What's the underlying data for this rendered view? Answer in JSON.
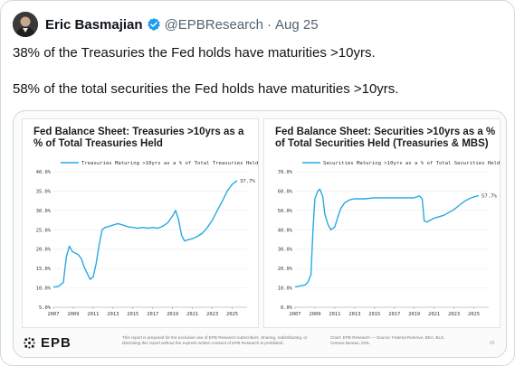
{
  "tweet": {
    "author_name": "Eric Basmajian",
    "handle": "@EPBResearch",
    "separator": "·",
    "date": "Aug 25",
    "paragraphs": [
      "38% of the Treasuries the Fed holds have maturities >10yrs.",
      "58% of the total securities the Fed holds have maturities >10yrs."
    ],
    "verified_color": "#1d9bf0"
  },
  "media": {
    "footer": {
      "logo_text": "EPB",
      "disclaimer": "This report is prepared for the exclusive use of EPB Research subscribers. Sharing, redistributing, or disclosing this report without the express written consent of EPB Research is prohibited.",
      "source": "Chart: EPB Research — Source: Federal Reserve, BEA, BLS, Census Bureau, DOL",
      "page": "#2"
    }
  },
  "chart_data": [
    {
      "type": "line",
      "title": "Fed Balance Sheet: Treasuries >10yrs as a % of Total Treasuries Held",
      "legend": "Treasuries Maturing >10yrs as a % of Total Treasuries Held",
      "last_value_label": "37.7%",
      "x_ticks": [
        "2007",
        "2009",
        "2011",
        "2013",
        "2015",
        "2017",
        "2019",
        "2021",
        "2023",
        "2025"
      ],
      "y_ticks": [
        "5.0%",
        "10.0%",
        "15.0%",
        "20.0%",
        "25.0%",
        "30.0%",
        "35.0%",
        "40.0%"
      ],
      "xlim": [
        2007,
        2026.5
      ],
      "ylim": [
        5,
        40
      ],
      "color": "#29a9e0",
      "x": [
        2007.0,
        2007.5,
        2008.0,
        2008.3,
        2008.6,
        2008.9,
        2009.2,
        2009.5,
        2009.8,
        2010.1,
        2010.4,
        2010.7,
        2011.0,
        2011.3,
        2011.6,
        2011.9,
        2012.2,
        2012.5,
        2013.0,
        2013.5,
        2014.0,
        2014.5,
        2015.0,
        2015.5,
        2016.0,
        2016.5,
        2017.0,
        2017.5,
        2018.0,
        2018.5,
        2019.0,
        2019.3,
        2019.6,
        2019.9,
        2020.2,
        2020.5,
        2021.0,
        2021.5,
        2022.0,
        2022.5,
        2023.0,
        2023.5,
        2024.0,
        2024.5,
        2025.0,
        2025.5
      ],
      "y": [
        10.2,
        10.4,
        11.4,
        18.0,
        20.8,
        19.4,
        19.0,
        18.6,
        17.6,
        15.4,
        13.8,
        12.2,
        12.8,
        16.2,
        21.0,
        25.0,
        25.6,
        25.8,
        26.2,
        26.6,
        26.2,
        25.8,
        25.6,
        25.4,
        25.6,
        25.4,
        25.6,
        25.4,
        25.9,
        26.8,
        28.6,
        30.0,
        27.6,
        23.6,
        22.1,
        22.4,
        22.7,
        23.3,
        24.1,
        25.6,
        27.5,
        30.0,
        32.4,
        35.0,
        36.7,
        37.7
      ]
    },
    {
      "type": "line",
      "title": "Fed Balance Sheet: Securities >10yrs as a % of Total Securities Held (Treasuries & MBS)",
      "legend": "Securities Maturing >10yrs as a % of Total Securities Held",
      "last_value_label": "57.7%",
      "x_ticks": [
        "2007",
        "2009",
        "2011",
        "2013",
        "2015",
        "2017",
        "2019",
        "2021",
        "2023",
        "2025"
      ],
      "y_ticks": [
        "0.0%",
        "10.0%",
        "20.0%",
        "30.0%",
        "40.0%",
        "50.0%",
        "60.0%",
        "70.0%"
      ],
      "xlim": [
        2007,
        2026.5
      ],
      "ylim": [
        0,
        70
      ],
      "color": "#29a9e0",
      "x": [
        2007.0,
        2007.5,
        2008.0,
        2008.3,
        2008.6,
        2008.8,
        2009.0,
        2009.3,
        2009.5,
        2009.8,
        2010.0,
        2010.3,
        2010.6,
        2011.0,
        2011.3,
        2011.6,
        2012.0,
        2012.5,
        2013.0,
        2014.0,
        2015.0,
        2016.0,
        2017.0,
        2018.0,
        2019.0,
        2019.5,
        2019.8,
        2020.0,
        2020.3,
        2020.6,
        2021.0,
        2022.0,
        2023.0,
        2023.5,
        2024.0,
        2024.5,
        2025.0,
        2025.5
      ],
      "y": [
        10.5,
        11.0,
        11.5,
        13.0,
        17.0,
        40.0,
        56.0,
        60.0,
        61.0,
        57.0,
        48.0,
        43.0,
        40.0,
        41.5,
        46.5,
        51.0,
        54.0,
        55.5,
        56.0,
        56.0,
        56.5,
        56.5,
        56.5,
        56.5,
        56.5,
        57.5,
        56.0,
        44.5,
        44.0,
        45.0,
        46.0,
        47.5,
        50.5,
        52.5,
        54.5,
        56.0,
        57.0,
        57.7
      ]
    }
  ]
}
